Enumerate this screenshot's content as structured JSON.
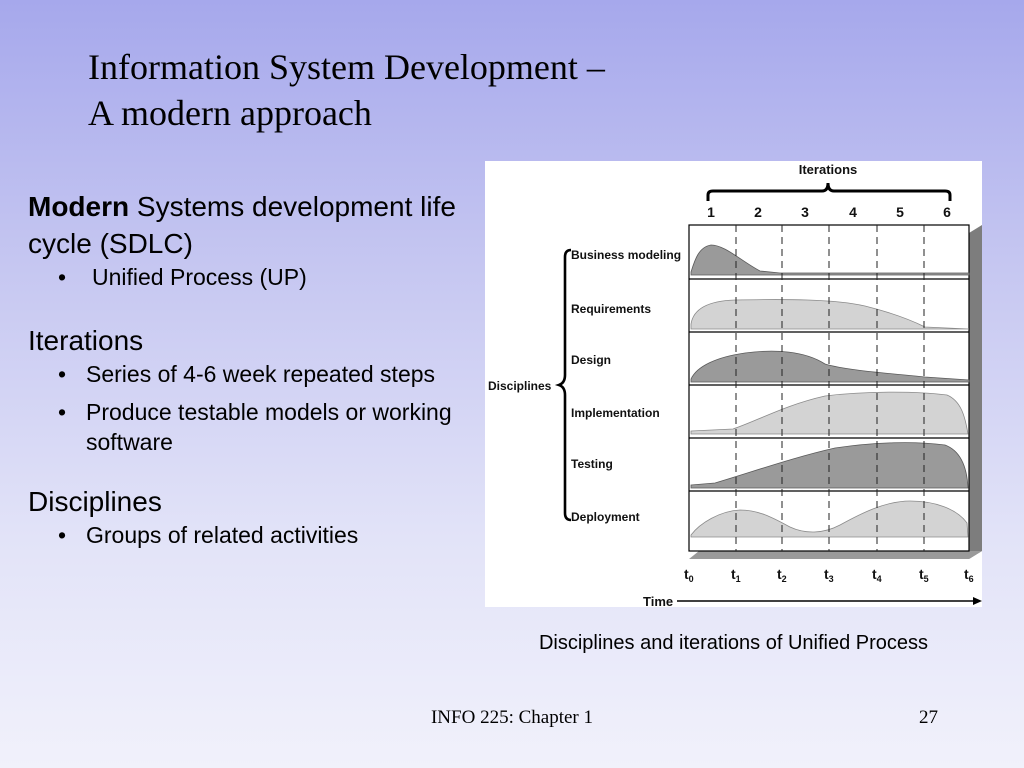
{
  "slide": {
    "title_line1": "Information System Development –",
    "title_line2": "A modern approach",
    "footer": "INFO 225: Chapter 1",
    "page_number": "27"
  },
  "content": {
    "section1": {
      "heading_bold": "Modern",
      "heading_rest": " Systems development life cycle (SDLC)",
      "bullets": [
        "Unified Process (UP)"
      ]
    },
    "section2": {
      "heading": "Iterations",
      "bullets": [
        "Series of 4-6 week repeated steps",
        "Produce testable models or working software"
      ]
    },
    "section3": {
      "heading": "Disciplines",
      "bullets": [
        "Groups of related activities"
      ]
    },
    "bullet_char": "•"
  },
  "figure": {
    "caption": "Disciplines and iterations of Unified Process",
    "iterations_label": "Iterations",
    "iteration_numbers": [
      "1",
      "2",
      "3",
      "4",
      "5",
      "6"
    ],
    "disciplines_label": "Disciplines",
    "disciplines": [
      "Business modeling",
      "Requirements",
      "Design",
      "Implementation",
      "Testing",
      "Deployment"
    ],
    "time_label": "Time",
    "time_ticks": [
      {
        "base": "t",
        "sub": "0"
      },
      {
        "base": "t",
        "sub": "1"
      },
      {
        "base": "t",
        "sub": "2"
      },
      {
        "base": "t",
        "sub": "3"
      },
      {
        "base": "t",
        "sub": "4"
      },
      {
        "base": "t",
        "sub": "5"
      },
      {
        "base": "t",
        "sub": "6"
      }
    ],
    "colors": {
      "dark_fill": "#9a9a9a",
      "light_fill": "#d3d3d3",
      "panel_bg": "#ffffff",
      "shadow": "#7d7d7d"
    }
  }
}
